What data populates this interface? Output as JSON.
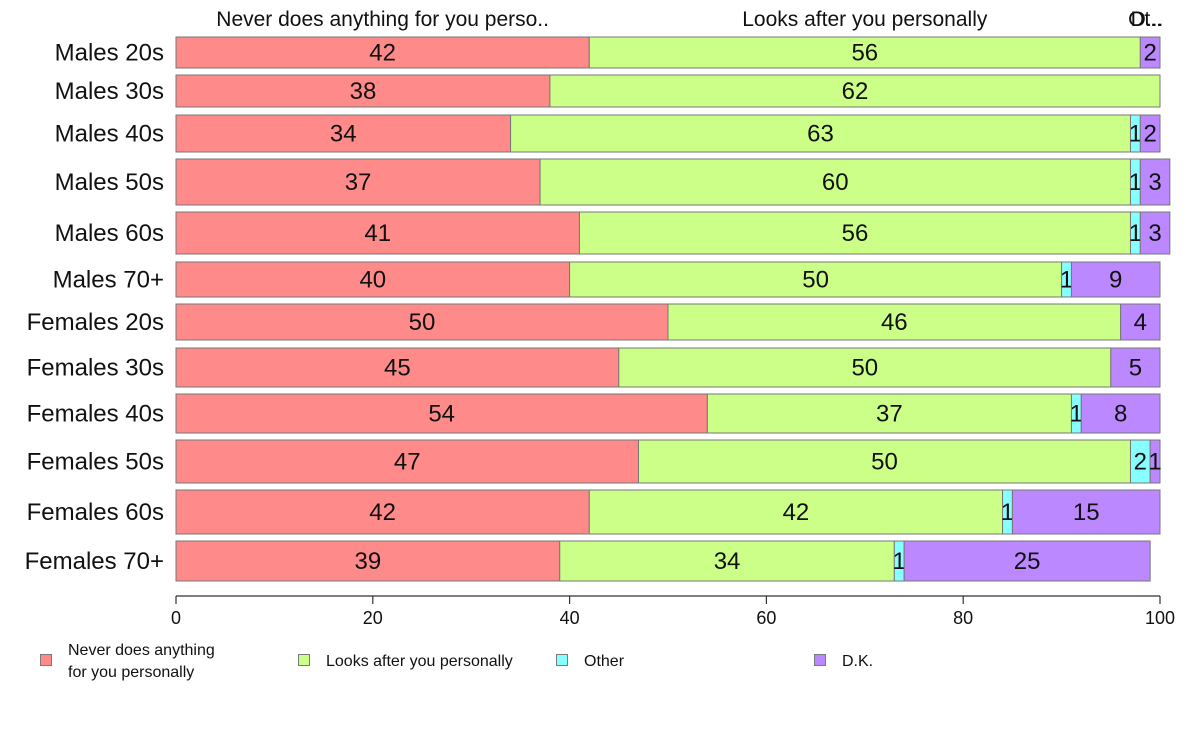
{
  "chart_data": {
    "type": "bar",
    "orientation": "horizontal",
    "stacked": true,
    "categories": [
      "Males 20s",
      "Males 30s",
      "Males 40s",
      "Males 50s",
      "Males 60s",
      "Males 70+",
      "Females 20s",
      "Females 30s",
      "Females 40s",
      "Females 50s",
      "Females 60s",
      "Females 70+"
    ],
    "series": [
      {
        "name": "Never does anything for you personally",
        "color": "#ff8a8a",
        "values": [
          42,
          38,
          34,
          37,
          41,
          40,
          50,
          45,
          54,
          47,
          42,
          39
        ]
      },
      {
        "name": "Looks after you personally",
        "color": "#ccff88",
        "values": [
          56,
          62,
          63,
          60,
          56,
          50,
          46,
          50,
          37,
          50,
          42,
          34
        ]
      },
      {
        "name": "Other",
        "color": "#88ffff",
        "values": [
          0,
          0,
          1,
          1,
          1,
          1,
          0,
          0,
          1,
          2,
          1,
          1
        ]
      },
      {
        "name": "D.K.",
        "color": "#bb88ff",
        "values": [
          2,
          0,
          2,
          3,
          3,
          9,
          4,
          5,
          8,
          1,
          15,
          25
        ]
      }
    ],
    "xlim": [
      0,
      100
    ],
    "xticks": [
      "0",
      "20",
      "40",
      "60",
      "80",
      "100"
    ],
    "top_labels": [
      "Never does anything for you perso..",
      "Looks after you personally",
      "Ot..",
      "D..."
    ],
    "legend": {
      "position": "bottom",
      "items": [
        "Never does anything\nfor you personally",
        "Looks after you personally",
        "Other",
        "D.K."
      ]
    }
  }
}
